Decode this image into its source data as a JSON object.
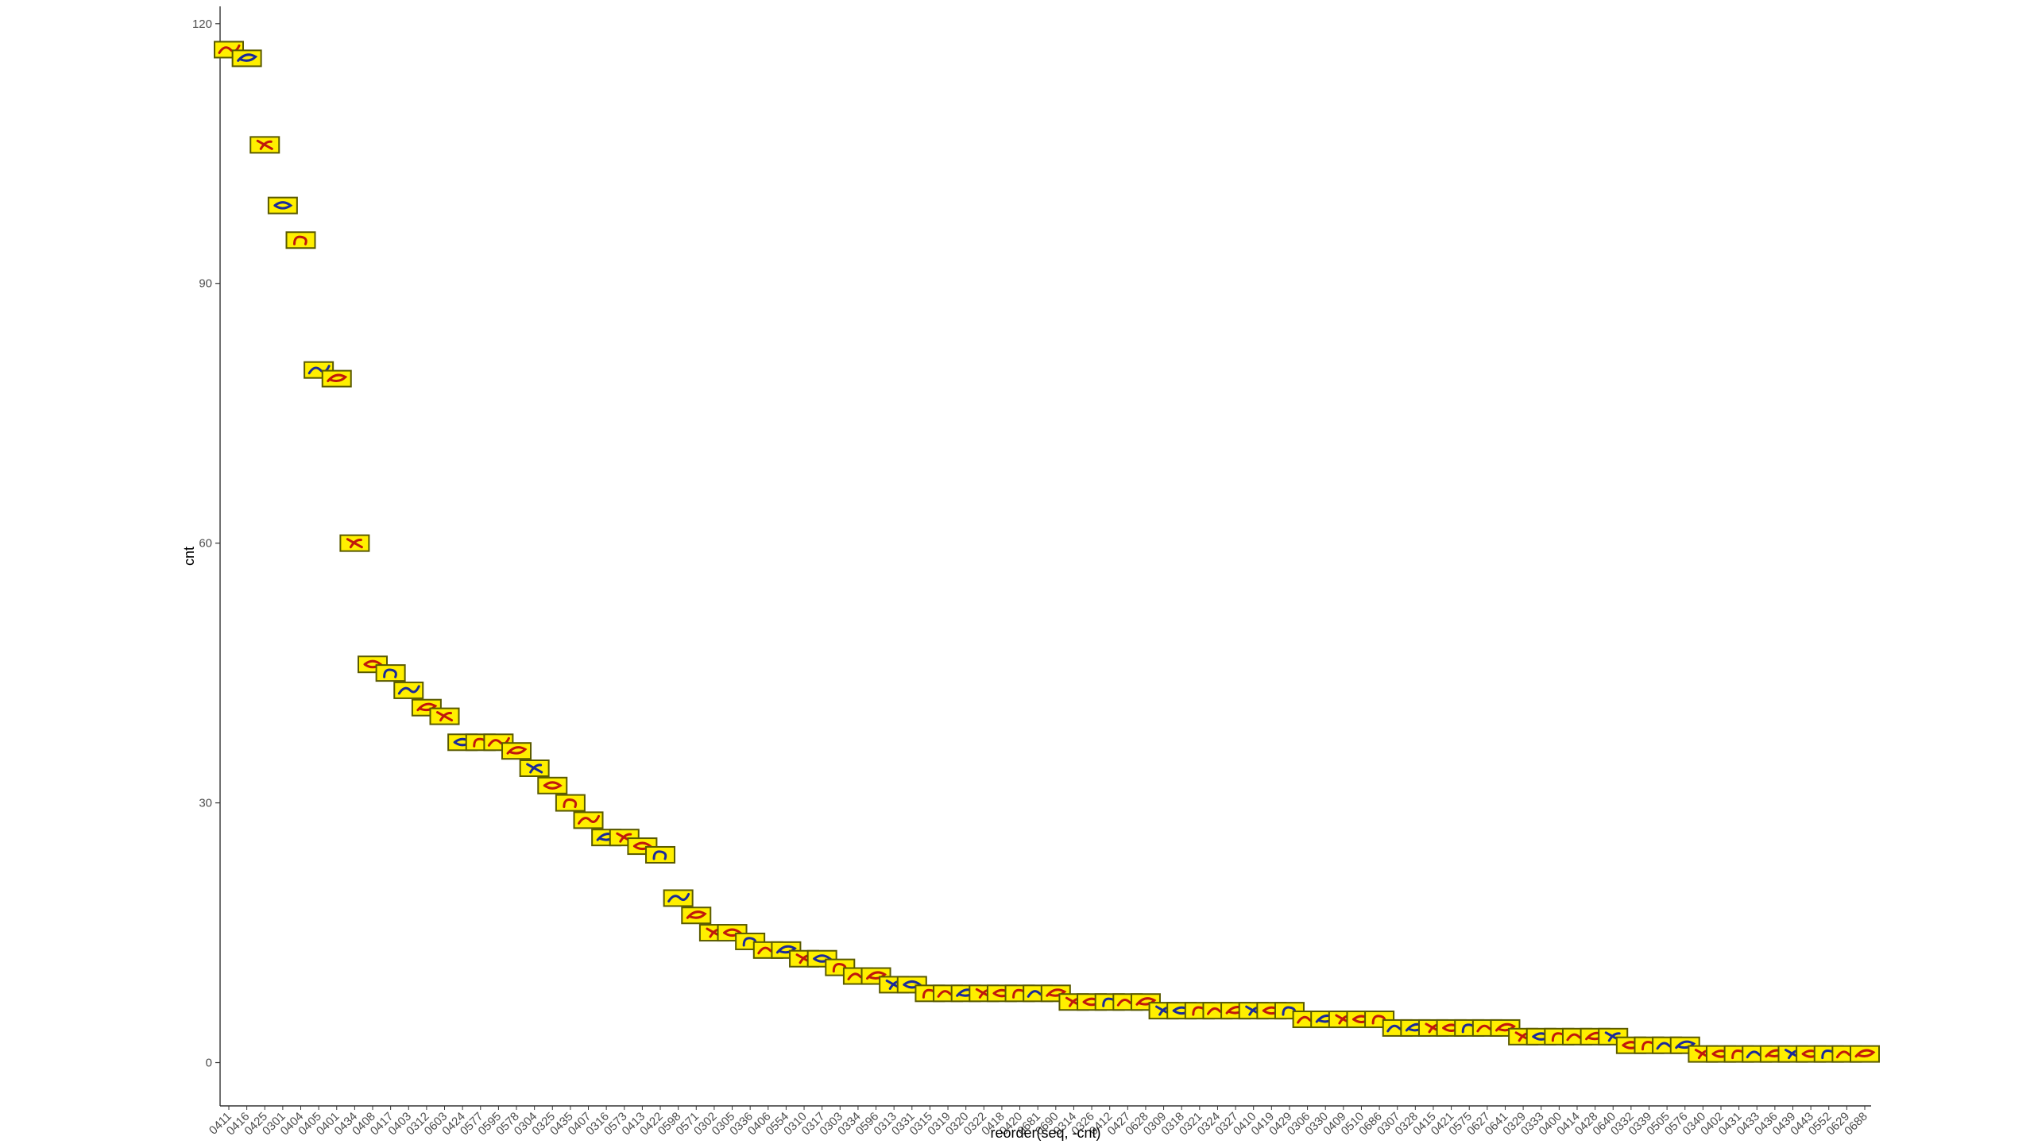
{
  "chart_data": {
    "type": "scatter",
    "title": "",
    "xlabel": "reorder(seq, -cnt)",
    "ylabel": "cnt",
    "ylim": [
      -5,
      122
    ],
    "yticks": [
      0,
      30,
      60,
      90,
      120
    ],
    "grid": false,
    "legend": "none",
    "marker": "image-tile",
    "categories": [
      "0411",
      "0416",
      "0425",
      "0301",
      "0404",
      "0405",
      "0401",
      "0434",
      "0408",
      "0417",
      "0403",
      "0312",
      "0603",
      "0424",
      "0577",
      "0595",
      "0578",
      "0304",
      "0325",
      "0435",
      "0407",
      "0316",
      "0573",
      "0413",
      "0422",
      "0598",
      "0571",
      "0302",
      "0305",
      "0336",
      "0406",
      "0554",
      "0310",
      "0317",
      "0303",
      "0334",
      "0596",
      "0313",
      "0331",
      "0315",
      "0319",
      "0320",
      "0322",
      "0418",
      "0420",
      "0681",
      "0690",
      "0314",
      "0326",
      "0412",
      "0427",
      "0628",
      "0309",
      "0318",
      "0321",
      "0324",
      "0327",
      "0410",
      "0419",
      "0429",
      "0306",
      "0330",
      "0409",
      "0510",
      "0686",
      "0307",
      "0328",
      "0415",
      "0421",
      "0575",
      "0627",
      "0641",
      "0329",
      "0333",
      "0400",
      "0414",
      "0428",
      "0640",
      "0332",
      "0339",
      "0505",
      "0576",
      "0340",
      "0402",
      "0431",
      "0433",
      "0436",
      "0439",
      "0443",
      "0552",
      "0629",
      "0688"
    ],
    "values": [
      117,
      116,
      106,
      99,
      95,
      80,
      79,
      60,
      46,
      45,
      43,
      41,
      40,
      37,
      37,
      37,
      36,
      34,
      32,
      30,
      28,
      26,
      26,
      25,
      24,
      19,
      17,
      15,
      15,
      14,
      13,
      13,
      12,
      12,
      11,
      10,
      10,
      9,
      9,
      8,
      8,
      8,
      8,
      8,
      8,
      8,
      8,
      7,
      7,
      7,
      7,
      7,
      6,
      6,
      6,
      6,
      6,
      6,
      6,
      6,
      5,
      5,
      5,
      5,
      5,
      4,
      4,
      4,
      4,
      4,
      4,
      4,
      3,
      3,
      3,
      3,
      3,
      3,
      2,
      2,
      2,
      2,
      1,
      1,
      1,
      1,
      1,
      1,
      1,
      1,
      1,
      1
    ],
    "tile_colors": {
      "background": "#ffef00",
      "frame": "#5a5a00",
      "glyph_primary": "#c0180c",
      "glyph_secondary": "#1a2a9a"
    }
  }
}
